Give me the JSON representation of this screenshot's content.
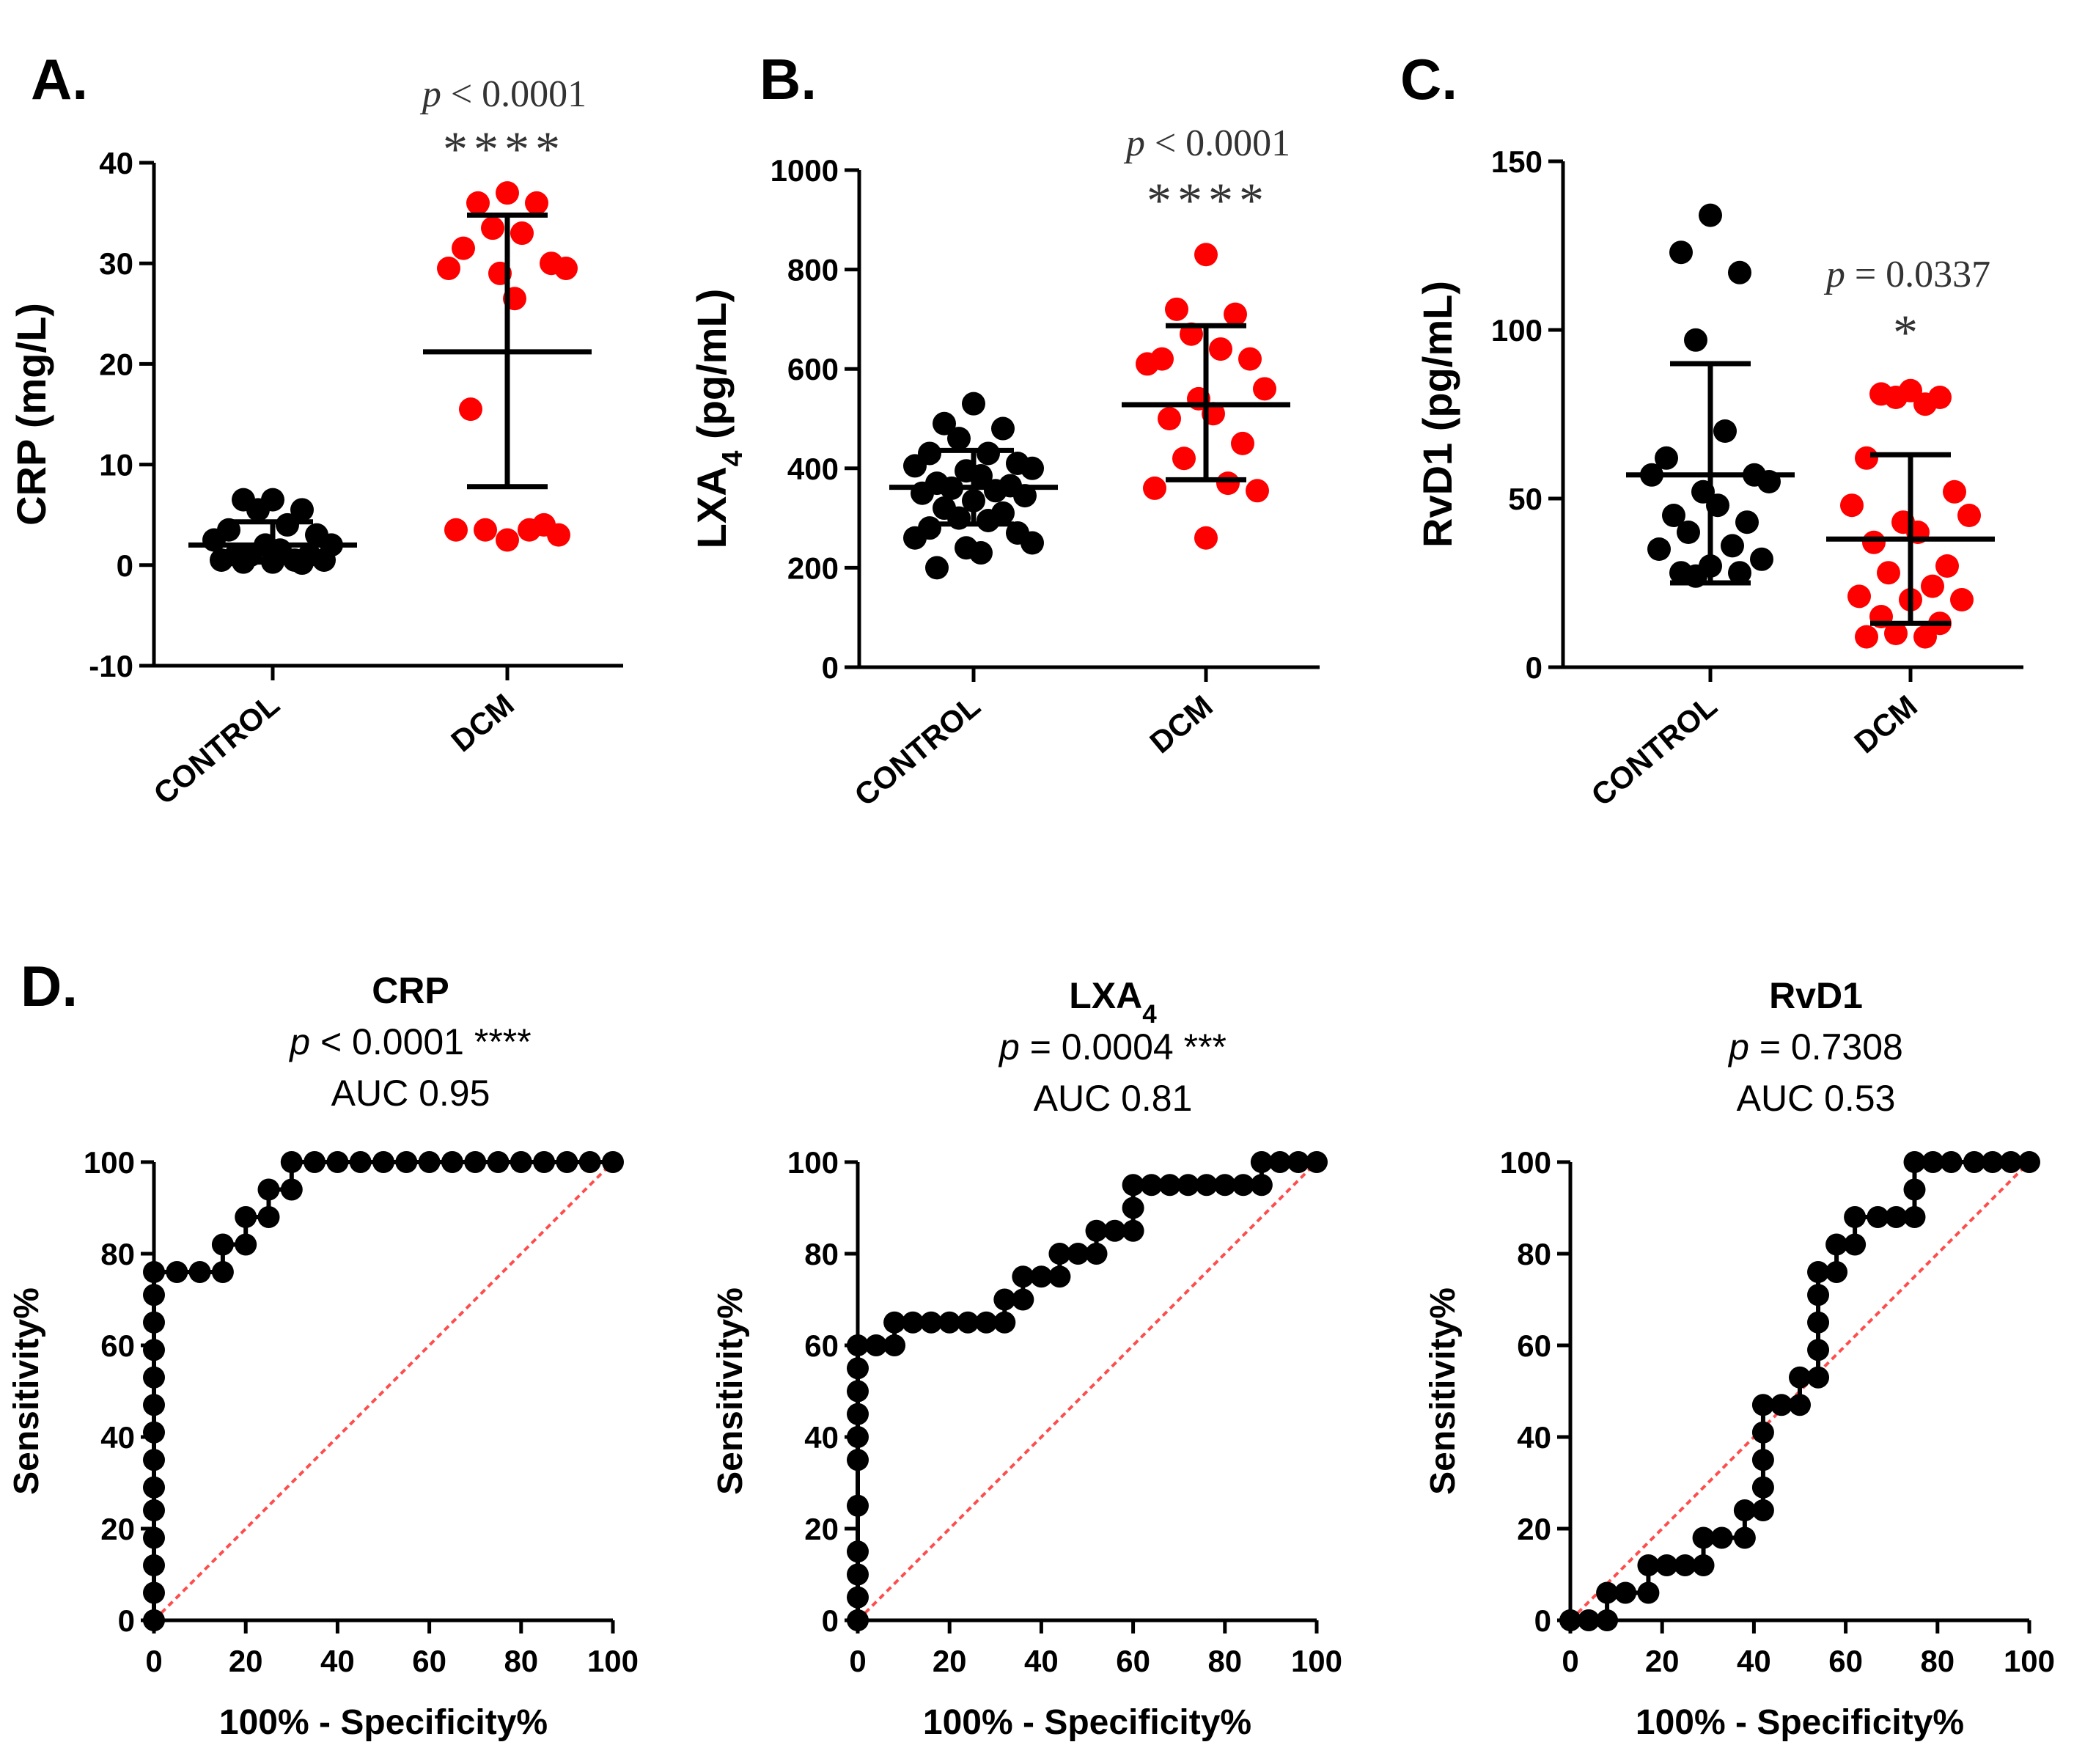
{
  "colors": {
    "control": "#000000",
    "dcm": "#ff0000",
    "roc_point": "#000000",
    "reference_line": "#ff4d4d"
  },
  "panels_top": [
    {
      "label": "A.",
      "pvalue": "p < 0.0001",
      "stars": "****",
      "ylabel": "CRP (mg/L)",
      "ylim": [
        -10,
        40
      ],
      "yticks": [
        "-10",
        "0",
        "10",
        "20",
        "30",
        "40"
      ],
      "categories": [
        "CONTROL",
        "DCM"
      ]
    },
    {
      "label": "B.",
      "pvalue": "p < 0.0001",
      "stars": "****",
      "ylabel": "LXA4 (pg/mL)",
      "ylim": [
        0,
        1000
      ],
      "yticks": [
        "0",
        "200",
        "400",
        "600",
        "800",
        "1000"
      ],
      "categories": [
        "CONTROL",
        "DCM"
      ]
    },
    {
      "label": "C.",
      "pvalue": "p = 0.0337",
      "stars": "*",
      "ylabel": "RvD1 (pg/mL)",
      "ylim": [
        0,
        150
      ],
      "yticks": [
        "0",
        "50",
        "100",
        "150"
      ],
      "categories": [
        "CONTROL",
        "DCM"
      ]
    }
  ],
  "panel_d": {
    "label": "D.",
    "xlabel": "100% - Specificity%",
    "ylabel": "Sensitivity%",
    "ticks": [
      "0",
      "20",
      "40",
      "60",
      "80",
      "100"
    ],
    "charts": [
      {
        "title": "CRP",
        "pvalue": "p < 0.0001 ****",
        "auc": "AUC 0.95"
      },
      {
        "title": "LXA4",
        "pvalue": "p = 0.0004 ***",
        "auc": "AUC 0.81"
      },
      {
        "title": "RvD1",
        "pvalue": "p = 0.7308",
        "auc": "AUC 0.53"
      }
    ]
  },
  "chart_data": [
    {
      "type": "scatter",
      "title": "A.",
      "ylabel": "CRP (mg/L)",
      "ylim": [
        -10,
        40
      ],
      "categories": [
        "CONTROL",
        "DCM"
      ],
      "series": [
        {
          "name": "CONTROL",
          "mean": 2.0,
          "sd_low": 0.3,
          "sd_high": 4.3,
          "values": [
            6.5,
            6.5,
            5.5,
            5.5,
            4.0,
            3.5,
            3.0,
            2.5,
            2.0,
            2.0,
            1.5,
            1.0,
            1.0,
            1.0,
            0.5,
            0.5,
            0.5,
            0.3,
            0.3,
            0.2
          ]
        },
        {
          "name": "DCM",
          "mean": 21.2,
          "sd_low": 7.8,
          "sd_high": 34.8,
          "values": [
            37.0,
            36.0,
            36.0,
            33.5,
            33.0,
            31.5,
            30.0,
            29.5,
            29.5,
            29.0,
            26.5,
            15.5,
            4.0,
            3.5,
            3.5,
            3.5,
            3.0,
            2.5
          ]
        }
      ]
    },
    {
      "type": "scatter",
      "title": "B.",
      "ylabel": "LXA4 (pg/mL)",
      "ylim": [
        0,
        1000
      ],
      "categories": [
        "CONTROL",
        "DCM"
      ],
      "series": [
        {
          "name": "CONTROL",
          "mean": 362,
          "sd_low": 288,
          "sd_high": 436,
          "values": [
            530,
            490,
            480,
            460,
            430,
            430,
            410,
            405,
            400,
            395,
            385,
            370,
            365,
            360,
            355,
            350,
            345,
            335,
            320,
            310,
            300,
            295,
            280,
            270,
            260,
            250,
            240,
            230,
            200
          ]
        },
        {
          "name": "DCM",
          "mean": 528,
          "sd_low": 377,
          "sd_high": 687,
          "values": [
            830,
            720,
            710,
            670,
            640,
            620,
            620,
            610,
            560,
            540,
            510,
            500,
            450,
            420,
            370,
            360,
            355,
            260
          ]
        }
      ]
    },
    {
      "type": "scatter",
      "title": "C.",
      "ylabel": "RvD1 (pg/mL)",
      "ylim": [
        0,
        150
      ],
      "categories": [
        "CONTROL",
        "DCM"
      ],
      "series": [
        {
          "name": "CONTROL",
          "mean": 57,
          "sd_low": 25,
          "sd_high": 90,
          "values": [
            134,
            123,
            117,
            97,
            70,
            62,
            57,
            57,
            55,
            52,
            48,
            45,
            43,
            40,
            36,
            35,
            32,
            30,
            28,
            28,
            27
          ]
        },
        {
          "name": "DCM",
          "mean": 38,
          "sd_low": 13,
          "sd_high": 63,
          "values": [
            82,
            81,
            80,
            80,
            78,
            62,
            52,
            48,
            45,
            43,
            40,
            37,
            30,
            28,
            24,
            21,
            20,
            20,
            15,
            13,
            10,
            9,
            9
          ]
        }
      ]
    },
    {
      "type": "line",
      "title": "CRP",
      "xlabel": "100% - Specificity%",
      "ylabel": "Sensitivity%",
      "xlim": [
        0,
        100
      ],
      "ylim": [
        0,
        100
      ],
      "reference_line": [
        [
          0,
          0
        ],
        [
          100,
          100
        ]
      ],
      "points": [
        [
          0,
          0
        ],
        [
          0,
          6
        ],
        [
          0,
          12
        ],
        [
          0,
          18
        ],
        [
          0,
          24
        ],
        [
          0,
          29
        ],
        [
          0,
          35
        ],
        [
          0,
          41
        ],
        [
          0,
          47
        ],
        [
          0,
          53
        ],
        [
          0,
          59
        ],
        [
          0,
          65
        ],
        [
          0,
          71
        ],
        [
          0,
          76
        ],
        [
          5,
          76
        ],
        [
          10,
          76
        ],
        [
          15,
          76
        ],
        [
          15,
          82
        ],
        [
          20,
          82
        ],
        [
          20,
          88
        ],
        [
          25,
          88
        ],
        [
          25,
          94
        ],
        [
          30,
          94
        ],
        [
          30,
          100
        ],
        [
          35,
          100
        ],
        [
          40,
          100
        ],
        [
          45,
          100
        ],
        [
          50,
          100
        ],
        [
          55,
          100
        ],
        [
          60,
          100
        ],
        [
          65,
          100
        ],
        [
          70,
          100
        ],
        [
          75,
          100
        ],
        [
          80,
          100
        ],
        [
          85,
          100
        ],
        [
          90,
          100
        ],
        [
          95,
          100
        ],
        [
          100,
          100
        ]
      ]
    },
    {
      "type": "line",
      "title": "LXA4",
      "xlabel": "100% - Specificity%",
      "ylabel": "Sensitivity%",
      "xlim": [
        0,
        100
      ],
      "ylim": [
        0,
        100
      ],
      "reference_line": [
        [
          0,
          0
        ],
        [
          100,
          100
        ]
      ],
      "points": [
        [
          0,
          0
        ],
        [
          0,
          5
        ],
        [
          0,
          10
        ],
        [
          0,
          15
        ],
        [
          0,
          25
        ],
        [
          0,
          35
        ],
        [
          0,
          40
        ],
        [
          0,
          45
        ],
        [
          0,
          50
        ],
        [
          0,
          55
        ],
        [
          0,
          60
        ],
        [
          4,
          60
        ],
        [
          8,
          60
        ],
        [
          8,
          65
        ],
        [
          12,
          65
        ],
        [
          16,
          65
        ],
        [
          20,
          65
        ],
        [
          24,
          65
        ],
        [
          28,
          65
        ],
        [
          32,
          65
        ],
        [
          32,
          70
        ],
        [
          36,
          70
        ],
        [
          36,
          75
        ],
        [
          40,
          75
        ],
        [
          44,
          75
        ],
        [
          44,
          80
        ],
        [
          48,
          80
        ],
        [
          52,
          80
        ],
        [
          52,
          85
        ],
        [
          56,
          85
        ],
        [
          60,
          85
        ],
        [
          60,
          90
        ],
        [
          60,
          95
        ],
        [
          64,
          95
        ],
        [
          68,
          95
        ],
        [
          72,
          95
        ],
        [
          76,
          95
        ],
        [
          80,
          95
        ],
        [
          84,
          95
        ],
        [
          88,
          95
        ],
        [
          88,
          100
        ],
        [
          92,
          100
        ],
        [
          96,
          100
        ],
        [
          100,
          100
        ]
      ]
    },
    {
      "type": "line",
      "title": "RvD1",
      "xlabel": "100% - Specificity%",
      "ylabel": "Sensitivity%",
      "xlim": [
        0,
        100
      ],
      "ylim": [
        0,
        100
      ],
      "reference_line": [
        [
          0,
          0
        ],
        [
          100,
          100
        ]
      ],
      "points": [
        [
          0,
          0
        ],
        [
          4,
          0
        ],
        [
          8,
          0
        ],
        [
          8,
          6
        ],
        [
          12,
          6
        ],
        [
          17,
          6
        ],
        [
          17,
          12
        ],
        [
          21,
          12
        ],
        [
          25,
          12
        ],
        [
          29,
          12
        ],
        [
          29,
          18
        ],
        [
          33,
          18
        ],
        [
          38,
          18
        ],
        [
          38,
          24
        ],
        [
          42,
          24
        ],
        [
          42,
          29
        ],
        [
          42,
          35
        ],
        [
          42,
          41
        ],
        [
          42,
          47
        ],
        [
          46,
          47
        ],
        [
          50,
          47
        ],
        [
          50,
          53
        ],
        [
          54,
          53
        ],
        [
          54,
          59
        ],
        [
          54,
          65
        ],
        [
          54,
          71
        ],
        [
          54,
          76
        ],
        [
          58,
          76
        ],
        [
          58,
          82
        ],
        [
          62,
          82
        ],
        [
          62,
          88
        ],
        [
          67,
          88
        ],
        [
          71,
          88
        ],
        [
          75,
          88
        ],
        [
          75,
          94
        ],
        [
          75,
          100
        ],
        [
          79,
          100
        ],
        [
          83,
          100
        ],
        [
          88,
          100
        ],
        [
          92,
          100
        ],
        [
          96,
          100
        ],
        [
          100,
          100
        ]
      ]
    }
  ]
}
